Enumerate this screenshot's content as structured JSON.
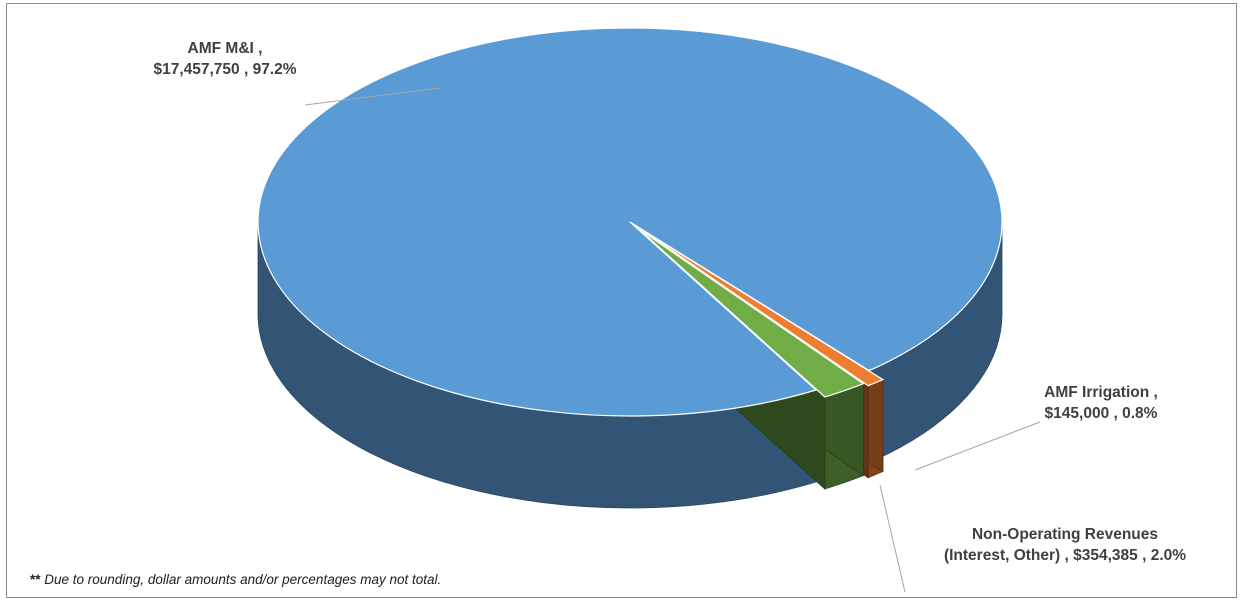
{
  "chart_data": {
    "type": "pie",
    "title": "",
    "slices": [
      {
        "name": "AMF M&I",
        "value": 17457750,
        "percent": 97.2,
        "color": "#5b9bd5",
        "label_line1": "AMF M&I ,",
        "label_line2": "$17,457,750 , 97.2%"
      },
      {
        "name": "AMF Irrigation",
        "value": 145000,
        "percent": 0.8,
        "color": "#ed7d31",
        "label_line1": "AMF Irrigation ,",
        "label_line2": "$145,000 , 0.8%"
      },
      {
        "name": "Non-Operating Revenues (Interest, Other)",
        "value": 354385,
        "percent": 2.0,
        "color": "#70ad47",
        "label_line1": "Non-Operating Revenues",
        "label_line2": "(Interest, Other) ,  $354,385 , 2.0%"
      }
    ],
    "style": "3d-exploded"
  },
  "footnote": {
    "stars": "**",
    "text": " Due to rounding, dollar amounts and/or percentages may not total."
  }
}
